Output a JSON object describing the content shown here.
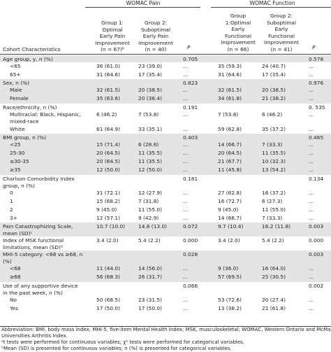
{
  "header": {
    "pain_group": "WOMAC Pain",
    "function_group": "WOMAC Function",
    "cohort_label": "Cohort Characteristics",
    "pain_g1": "Group 1:\nOptimal\nEarly Pain\nImprovement\n(n = 67)ᵇ",
    "pain_g2": "Group 2:\nSuboptimal\nEarly Pain\nImprovement\n(n = 40)",
    "p_label": "P",
    "func_g1": "Group\n1:Optimal\nEarly\nFunctional\nImprovement\n(n = 66)",
    "func_g2": "Group 2:\nSuboptimal\nEarly\nFunctional\nImprovement\n(n = 41)"
  },
  "rows": [
    {
      "label": "Age group, y, n (%)",
      "g1": "",
      "g2": "",
      "p1": "0.705",
      "g3": "",
      "g4": "",
      "p2": "0.578",
      "shaded": true,
      "sub": false,
      "h": 10
    },
    {
      "label": "<65",
      "g1": "36 (61.0)",
      "g2": "23 (39.0)",
      "p1": "...",
      "g3": "35 (59.3)",
      "g4": "24 (40.7)",
      "p2": "...",
      "shaded": false,
      "sub": true,
      "h": 12
    },
    {
      "label": "65+",
      "g1": "31 (64.6)",
      "g2": "17 (35.4)",
      "p1": "...",
      "g3": "31 (64.6)",
      "g4": "17 (35.4)",
      "p2": "...",
      "shaded": false,
      "sub": true,
      "h": 12
    },
    {
      "label": "Sex, n (%)",
      "g1": "",
      "g2": "",
      "p1": "0.823",
      "g3": "",
      "g4": "",
      "p2": "0.976",
      "shaded": true,
      "sub": false,
      "h": 10
    },
    {
      "label": "Male",
      "g1": "32 (61.5)",
      "g2": "20 (38.5)",
      "p1": "...",
      "g3": "32 (61.5)",
      "g4": "20 (38.5)",
      "p2": "...",
      "shaded": true,
      "sub": true,
      "h": 12
    },
    {
      "label": "Female",
      "g1": "35 (63.6)",
      "g2": "20 (36.4)",
      "p1": "...",
      "g3": "34 (61.8)",
      "g4": "21 (38.2)",
      "p2": "...",
      "shaded": true,
      "sub": true,
      "h": 13
    },
    {
      "label": "Race/ethnicity, n (%)",
      "g1": "",
      "g2": "",
      "p1": "0.191",
      "g3": "",
      "g4": "",
      "p2": "0. 535",
      "shaded": false,
      "sub": false,
      "h": 10
    },
    {
      "label": "Multiracial: Black, Hispanic, mixed-race",
      "g1": "6 (46.2)",
      "g2": "7 (53.8)",
      "p1": "...",
      "g3": "7 (53.8)",
      "g4": "6 (46.2)",
      "p2": "...",
      "shaded": false,
      "sub": true,
      "h": 21
    },
    {
      "label": "White",
      "g1": "61 (64.9)",
      "g2": "33 (35.1)",
      "p1": "...",
      "g3": "59 (62.8)",
      "g4": "35 (37.2)",
      "p2": "...",
      "shaded": false,
      "sub": true,
      "h": 12
    },
    {
      "label": "BMI group, n (%)",
      "g1": "",
      "g2": "",
      "p1": "0.403",
      "g3": "",
      "g4": "",
      "p2": "0.465",
      "shaded": true,
      "sub": false,
      "h": 10
    },
    {
      "label": "<25",
      "g1": "15 (71.4)",
      "g2": "6 (28.6)",
      "p1": "...",
      "g3": "14 (66.7)",
      "g4": "7 (33.3)",
      "p2": "...",
      "shaded": true,
      "sub": true,
      "h": 12
    },
    {
      "label": "25-30",
      "g1": "20 (64.5)",
      "g2": "11 (35.5)",
      "p1": "...",
      "g3": "20 (64.5)",
      "g4": "11 (35.5)",
      "p2": "...",
      "shaded": true,
      "sub": true,
      "h": 12
    },
    {
      "label": "≤30-35",
      "g1": "20 (64.5)",
      "g2": "11 (35.5)",
      "p1": "...",
      "g3": "21 (67.7)",
      "g4": "10 (32.3)",
      "p2": "...",
      "shaded": true,
      "sub": true,
      "h": 12
    },
    {
      "label": "≥35",
      "g1": "12 (50.0)",
      "g2": "12 (50.0)",
      "p1": "...",
      "g3": "11 (45.8)",
      "g4": "13 (54.2)",
      "p2": "...",
      "shaded": true,
      "sub": true,
      "h": 13
    },
    {
      "label": "Charlson Comorbidity Index group, n (%)",
      "g1": "",
      "g2": "",
      "p1": "0.181",
      "g3": "",
      "g4": "",
      "p2": "0.134",
      "shaded": false,
      "sub": false,
      "h": 20
    },
    {
      "label": "0",
      "g1": "31 (72.1)",
      "g2": "12 (27.9)",
      "p1": "...",
      "g3": "27 (62.8)",
      "g4": "16 (37.2)",
      "p2": "...",
      "shaded": false,
      "sub": true,
      "h": 12
    },
    {
      "label": "1",
      "g1": "15 (68.2)",
      "g2": "7 (31.8)",
      "p1": "...",
      "g3": "16 (72.7)",
      "g4": "6 (27.3)",
      "p2": "...",
      "shaded": false,
      "sub": true,
      "h": 12
    },
    {
      "label": "2",
      "g1": "9 (45.0)",
      "g2": "11 (55.0)",
      "p1": "...",
      "g3": "9 (45.0)",
      "g4": "11 (55.0)",
      "p2": "...",
      "shaded": false,
      "sub": true,
      "h": 12
    },
    {
      "label": "3+",
      "g1": "12 (57.1)",
      "g2": "9 (42.9)",
      "p1": "...",
      "g3": "14 (66.7)",
      "g4": "7 (33.3)",
      "p2": "...",
      "shaded": false,
      "sub": true,
      "h": 12
    },
    {
      "label": "Pain Catastrophizing Scale, mean (SD)ᶜ",
      "g1": "10.7 (10.0)",
      "g2": "14.8 (13.0)",
      "p1": "0.072",
      "g3": "9.7 (10.4)",
      "g4": "16.2 (11.8)",
      "p2": "0.003",
      "shaded": true,
      "sub": false,
      "h": 20
    },
    {
      "label": "Index of MSK functional limitations, mean (SD)ᵈ",
      "g1": "3.4 (2.0)",
      "g2": "5.4 (2.2)",
      "p1": "0.000",
      "g3": "3.4 (2.0)",
      "g4": "5.4 (2.2)",
      "p2": "0.000",
      "shaded": false,
      "sub": false,
      "h": 20
    },
    {
      "label": "MHI-5 category: <68 vs ≥68, n (%)",
      "g1": "",
      "g2": "",
      "p1": "0.028",
      "g3": "",
      "g4": "",
      "p2": "0.003",
      "shaded": true,
      "sub": false,
      "h": 20
    },
    {
      "label": "<68",
      "g1": "11 (44.0)",
      "g2": "14 (56.0)",
      "p1": "...",
      "g3": "9 (36.0)",
      "g4": "16 (64.0)",
      "p2": "...",
      "shaded": true,
      "sub": true,
      "h": 12
    },
    {
      "label": "≥68",
      "g1": "56 (68.3)",
      "g2": "26 (31.7)",
      "p1": "...",
      "g3": "57 (69.5)",
      "g4": "25 (30.5)",
      "p2": "...",
      "shaded": true,
      "sub": true,
      "h": 13
    },
    {
      "label": "Use of any supportive device in the past week, n (%)",
      "g1": "",
      "g2": "",
      "p1": "0.066",
      "g3": "",
      "g4": "",
      "p2": "0.002",
      "shaded": false,
      "sub": false,
      "h": 20
    },
    {
      "label": "No",
      "g1": "50 (68.5)",
      "g2": "23 (31.5)",
      "p1": "...",
      "g3": "53 (72.6)",
      "g4": "20 (27.4)",
      "p2": "...",
      "shaded": false,
      "sub": true,
      "h": 12
    },
    {
      "label": "Yes",
      "g1": "17 (50.0)",
      "g2": "17 (50.0)",
      "p1": "...",
      "g3": "13 (38.2)",
      "g4": "21 (61.8)",
      "p2": "...",
      "shaded": false,
      "sub": true,
      "h": 12
    }
  ],
  "footnotes": [
    "Abbreviation: BMI, body mass index; MHI-5, five-item Mental Health Index; MSK, musculoskeletal; WOMAC, Western Ontario and McMaster",
    "Universities Arthritis Index.",
    "ᵃt tests were performed for continuous variables; χ² tests were performed for categorical variables.",
    "ᵇMean (SD) is presented for continuous variables; n (%) is presented for categorical variables."
  ]
}
